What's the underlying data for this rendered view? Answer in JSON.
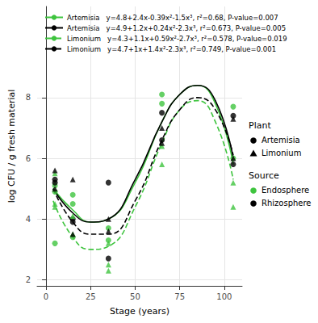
{
  "chart_data": {
    "type": "scatter",
    "x_label": "Stage (years)",
    "y_label": "log CFU / g fresh material",
    "xlim": [
      -5,
      110
    ],
    "xticks": [
      0,
      25,
      50,
      75,
      100
    ],
    "ylim": [
      1.8,
      11
    ],
    "yticks": [
      2,
      4,
      6,
      8
    ],
    "grid": true,
    "legend": "top-left",
    "fits": [
      {
        "name": "Artemisia",
        "equation": "y=4.8+2.4x-0.39x²-1.5x³, r²=0.68, P-value=0.007",
        "color": "#3ec43e",
        "line_style": "solid",
        "x": [
          4,
          15,
          25,
          35,
          50,
          65,
          75,
          85,
          95,
          105
        ],
        "y": [
          5.0,
          4.3,
          3.9,
          4.0,
          5.2,
          7.2,
          8.1,
          8.4,
          7.8,
          5.8
        ]
      },
      {
        "name": "Artemisia",
        "equation": "y=4.9+1.2x+0.24x²-2.3x³, r²=0.673, P-value=0.005",
        "color": "#000000",
        "line_style": "solid",
        "x": [
          4,
          15,
          25,
          35,
          50,
          65,
          75,
          85,
          95,
          105
        ],
        "y": [
          5.0,
          4.2,
          3.9,
          4.0,
          5.3,
          7.2,
          8.1,
          8.4,
          7.9,
          6.0
        ]
      },
      {
        "name": "Limonium",
        "equation": "y=4.3+1.1x+0.59x²-2.7x³, r²=0.578, P-value=0.019",
        "color": "#3ec43e",
        "line_style": "dashed",
        "x": [
          4,
          15,
          25,
          35,
          50,
          65,
          75,
          85,
          95,
          105
        ],
        "y": [
          4.6,
          3.4,
          3.0,
          3.1,
          4.4,
          6.5,
          7.6,
          7.9,
          7.2,
          5.3
        ]
      },
      {
        "name": "Limonium",
        "equation": "y=4.7+1x+1.4x²-2.3x³, r²=0.749, P-value=0.001",
        "color": "#000000",
        "line_style": "dashed",
        "x": [
          4,
          15,
          25,
          35,
          50,
          65,
          75,
          85,
          95,
          105
        ],
        "y": [
          5.0,
          3.9,
          3.5,
          3.5,
          4.6,
          6.6,
          7.6,
          8.0,
          7.6,
          6.1
        ]
      }
    ],
    "series": [
      {
        "plant": "Artemisia",
        "source": "Endosphere",
        "color": "#3ec43e",
        "marker": "circle",
        "x": [
          5,
          5,
          5,
          15,
          15,
          15,
          35,
          35,
          65,
          65,
          105,
          105
        ],
        "y": [
          3.2,
          4.9,
          5.1,
          4.8,
          4.5,
          3.4,
          3.3,
          3.7,
          8.1,
          7.8,
          7.7,
          6.0
        ]
      },
      {
        "plant": "Artemisia",
        "source": "Rhizosphere",
        "color": "#000000",
        "marker": "circle",
        "x": [
          5,
          5,
          15,
          15,
          35,
          35,
          65,
          65,
          105,
          105
        ],
        "y": [
          5.3,
          5.2,
          3.9,
          4.0,
          5.2,
          2.7,
          7.5,
          6.6,
          7.4,
          5.8
        ]
      },
      {
        "plant": "Limonium",
        "source": "Endosphere",
        "color": "#3ec43e",
        "marker": "triangle",
        "x": [
          5,
          5,
          5,
          15,
          15,
          35,
          35,
          35,
          65,
          65,
          105,
          105
        ],
        "y": [
          4.4,
          4.5,
          5.5,
          3.5,
          4.1,
          2.5,
          2.3,
          3.2,
          6.4,
          5.8,
          4.4,
          5.2
        ]
      },
      {
        "plant": "Limonium",
        "source": "Rhizosphere",
        "color": "#000000",
        "marker": "triangle",
        "x": [
          5,
          5,
          15,
          15,
          35,
          35,
          65,
          65,
          105,
          105
        ],
        "y": [
          5.6,
          5.0,
          5.3,
          3.5,
          3.6,
          4.0,
          6.5,
          7.0,
          7.3,
          6.0
        ]
      }
    ],
    "legend_groups": [
      {
        "title": "Plant",
        "items": [
          {
            "name": "Artemisia",
            "marker": "circle",
            "color": "#000000"
          },
          {
            "name": "Limonium",
            "marker": "triangle",
            "color": "#000000"
          }
        ]
      },
      {
        "title": "Source",
        "items": [
          {
            "name": "Endosphere",
            "marker": "circle",
            "color": "#3ec43e"
          },
          {
            "name": "Rhizosphere",
            "marker": "circle",
            "color": "#000000"
          }
        ]
      }
    ]
  }
}
